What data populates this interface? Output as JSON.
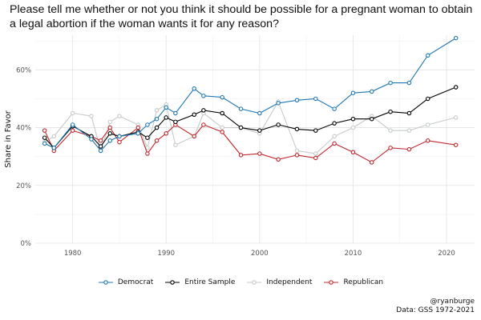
{
  "title": "Please tell me whether or not you think it should be possible for a pregnant woman to obtain a legal abortion if the woman wants it for any reason?",
  "credit_handle": "@ryanburge",
  "credit_source": "Data: GSS 1972-2021",
  "chart_data": {
    "type": "line",
    "title": "Please tell me whether or not you think it should be possible for a pregnant woman to obtain a legal abortion if the woman wants it for any reason?",
    "xlabel": "",
    "ylabel": "Share in Favor",
    "xlim": [
      1976,
      2023
    ],
    "ylim": [
      0,
      0.72
    ],
    "x_ticks": [
      1980,
      1990,
      2000,
      2010,
      2020
    ],
    "y_ticks": [
      0,
      0.2,
      0.4,
      0.6
    ],
    "y_tick_labels": [
      "0%",
      "20%",
      "40%",
      "60%"
    ],
    "grid": true,
    "legend_position": "bottom",
    "series": [
      {
        "name": "Independent",
        "color": "#c5cbc8",
        "x": [
          1977,
          1978,
          1980,
          1982,
          1983,
          1984,
          1985,
          1987,
          1988,
          1989,
          1990,
          1991,
          1993,
          1994,
          1996,
          1998,
          2000,
          2002,
          2004,
          2006,
          2008,
          2010,
          2012,
          2014,
          2016,
          2018,
          2021
        ],
        "y": [
          0.35,
          0.37,
          0.45,
          0.44,
          0.32,
          0.42,
          0.44,
          0.41,
          0.33,
          0.46,
          0.48,
          0.34,
          0.37,
          0.45,
          0.4,
          0.4,
          0.38,
          0.49,
          0.32,
          0.31,
          0.37,
          0.4,
          0.44,
          0.39,
          0.39,
          0.41,
          0.435
        ]
      },
      {
        "name": "Republican",
        "color": "#c0272d",
        "x": [
          1977,
          1978,
          1980,
          1982,
          1983,
          1984,
          1985,
          1987,
          1988,
          1989,
          1990,
          1991,
          1993,
          1994,
          1996,
          1998,
          2000,
          2002,
          2004,
          2006,
          2008,
          2010,
          2012,
          2014,
          2016,
          2018,
          2021
        ],
        "y": [
          0.39,
          0.32,
          0.39,
          0.37,
          0.355,
          0.4,
          0.35,
          0.4,
          0.31,
          0.355,
          0.38,
          0.41,
          0.37,
          0.41,
          0.385,
          0.305,
          0.31,
          0.29,
          0.305,
          0.295,
          0.345,
          0.315,
          0.28,
          0.33,
          0.325,
          0.355,
          0.34
        ]
      },
      {
        "name": "Entire Sample",
        "color": "#000000",
        "x": [
          1977,
          1978,
          1980,
          1982,
          1983,
          1984,
          1985,
          1987,
          1988,
          1989,
          1990,
          1991,
          1993,
          1994,
          1996,
          1998,
          2000,
          2002,
          2004,
          2006,
          2008,
          2010,
          2012,
          2014,
          2016,
          2018,
          2021
        ],
        "y": [
          0.365,
          0.33,
          0.405,
          0.37,
          0.335,
          0.38,
          0.37,
          0.385,
          0.365,
          0.4,
          0.435,
          0.42,
          0.445,
          0.46,
          0.45,
          0.4,
          0.39,
          0.41,
          0.395,
          0.39,
          0.415,
          0.43,
          0.43,
          0.455,
          0.45,
          0.5,
          0.54
        ]
      },
      {
        "name": "Democrat",
        "color": "#1f77b4",
        "x": [
          1977,
          1978,
          1980,
          1982,
          1983,
          1984,
          1985,
          1987,
          1988,
          1989,
          1990,
          1991,
          1993,
          1994,
          1996,
          1998,
          2000,
          2002,
          2004,
          2006,
          2008,
          2010,
          2012,
          2014,
          2016,
          2018,
          2021
        ],
        "y": [
          0.345,
          0.33,
          0.41,
          0.36,
          0.32,
          0.355,
          0.37,
          0.38,
          0.41,
          0.43,
          0.47,
          0.45,
          0.535,
          0.51,
          0.505,
          0.465,
          0.45,
          0.485,
          0.495,
          0.5,
          0.465,
          0.52,
          0.525,
          0.555,
          0.555,
          0.65,
          0.71
        ]
      }
    ],
    "legend_order": [
      "Democrat",
      "Entire Sample",
      "Independent",
      "Republican"
    ]
  }
}
